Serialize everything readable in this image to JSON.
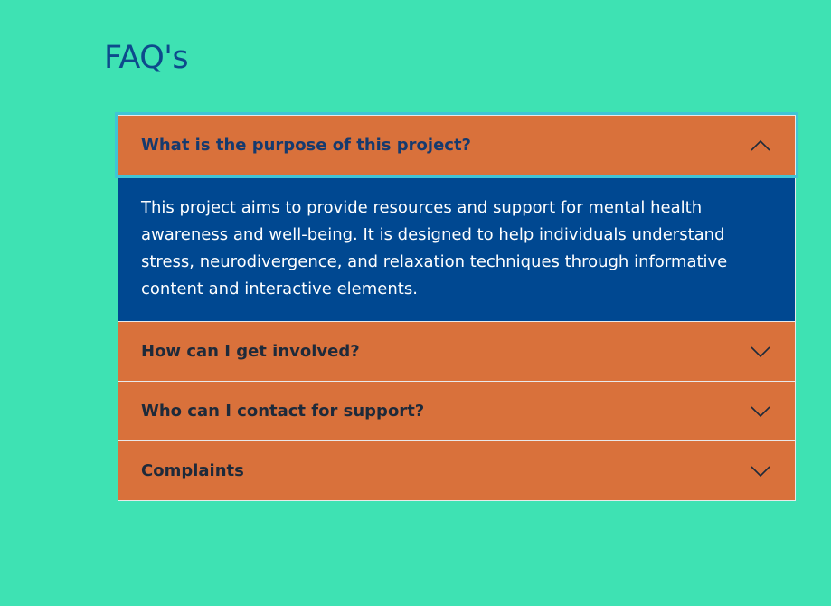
{
  "page": {
    "title": "FAQ's"
  },
  "faq": {
    "items": [
      {
        "question": "What is the purpose of this project?",
        "expanded": true,
        "answer": "This project aims to provide resources and support for mental health awareness and well-being. It is designed to help individuals understand stress, neurodivergence, and relaxation techniques through informative content and interactive elements."
      },
      {
        "question": "How can I get involved?",
        "expanded": false
      },
      {
        "question": "Who can I contact for support?",
        "expanded": false
      },
      {
        "question": "Complaints",
        "expanded": false
      }
    ]
  },
  "icons": {
    "expanded": "chevron-up-icon",
    "collapsed": "chevron-down-icon"
  },
  "colors": {
    "background": "#3ee2b3",
    "title": "#0d4a8c",
    "header": "#d9713b",
    "answer_background": "#004891",
    "focus_outline": "#40c4d6"
  }
}
